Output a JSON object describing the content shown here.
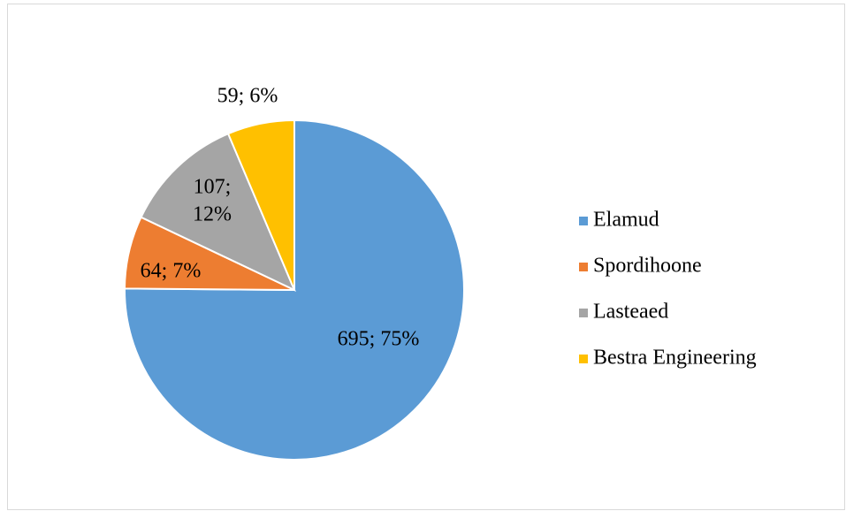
{
  "chart_data": {
    "type": "pie",
    "categories": [
      "Elamud",
      "Spordihoone",
      "Lasteaed",
      "Bestra Engineering"
    ],
    "values": [
      695,
      64,
      107,
      59
    ],
    "value_labels": [
      "695; 75%",
      "64; 7%",
      "107; 12%",
      "59; 6%"
    ],
    "colors": [
      "#5b9bd5",
      "#ed7d31",
      "#a5a5a5",
      "#ffc000"
    ],
    "legend": "right"
  }
}
